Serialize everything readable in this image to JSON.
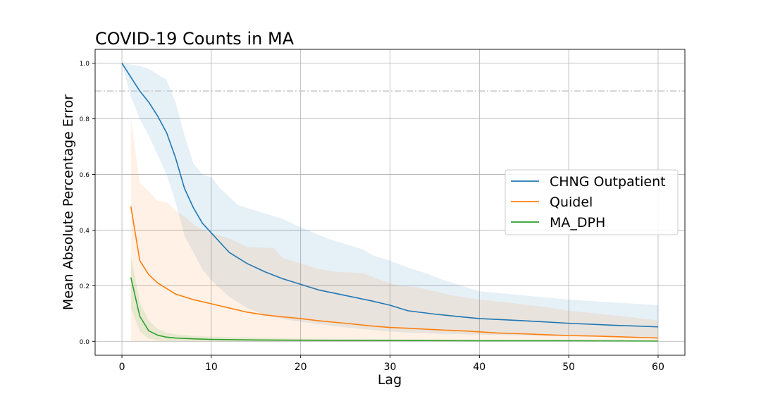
{
  "chart_data": {
    "type": "line",
    "title": "COVID-19 Counts in MA",
    "xlabel": "Lag",
    "ylabel": "Mean Absolute Percentage Error",
    "xlim": [
      -3,
      63
    ],
    "ylim": [
      -0.05,
      1.05
    ],
    "xticks": [
      0,
      10,
      20,
      30,
      40,
      50,
      60
    ],
    "yticks": [
      0.0,
      0.2,
      0.4,
      0.6,
      0.8,
      1.0
    ],
    "grid": true,
    "legend_position": "center-right",
    "reference_line": {
      "y": 0.9,
      "style": "dash-dot",
      "color": "#c8c8c8"
    },
    "series": [
      {
        "name": "CHNG Outpatient",
        "color": "#1f77b4",
        "band_color": "#1f77b4",
        "points": [
          [
            0,
            1.0
          ],
          [
            1,
            0.95
          ],
          [
            2,
            0.9
          ],
          [
            3,
            0.86
          ],
          [
            4,
            0.81
          ],
          [
            5,
            0.75
          ],
          [
            6,
            0.66
          ],
          [
            7,
            0.55
          ],
          [
            8,
            0.48
          ],
          [
            9,
            0.425
          ],
          [
            10,
            0.39
          ],
          [
            12,
            0.32
          ],
          [
            14,
            0.28
          ],
          [
            16,
            0.25
          ],
          [
            18,
            0.225
          ],
          [
            20,
            0.205
          ],
          [
            22,
            0.185
          ],
          [
            25,
            0.165
          ],
          [
            28,
            0.145
          ],
          [
            30,
            0.13
          ],
          [
            32,
            0.11
          ],
          [
            35,
            0.098
          ],
          [
            38,
            0.088
          ],
          [
            40,
            0.082
          ],
          [
            45,
            0.074
          ],
          [
            50,
            0.065
          ],
          [
            55,
            0.058
          ],
          [
            60,
            0.052
          ]
        ],
        "upper": [
          [
            0,
            1.0
          ],
          [
            2,
            0.99
          ],
          [
            3,
            0.98
          ],
          [
            5,
            0.94
          ],
          [
            6,
            0.86
          ],
          [
            7,
            0.74
          ],
          [
            8,
            0.64
          ],
          [
            9,
            0.6
          ],
          [
            10,
            0.59
          ],
          [
            11,
            0.55
          ],
          [
            12,
            0.52
          ],
          [
            13,
            0.49
          ],
          [
            15,
            0.47
          ],
          [
            18,
            0.44
          ],
          [
            20,
            0.41
          ],
          [
            23,
            0.37
          ],
          [
            25,
            0.35
          ],
          [
            27,
            0.33
          ],
          [
            28,
            0.31
          ],
          [
            30,
            0.29
          ],
          [
            32,
            0.265
          ],
          [
            34,
            0.245
          ],
          [
            36,
            0.22
          ],
          [
            38,
            0.2
          ],
          [
            40,
            0.18
          ],
          [
            45,
            0.165
          ],
          [
            50,
            0.15
          ],
          [
            55,
            0.14
          ],
          [
            60,
            0.13
          ]
        ],
        "lower": [
          [
            0,
            1.0
          ],
          [
            1,
            0.88
          ],
          [
            2,
            0.8
          ],
          [
            3,
            0.74
          ],
          [
            4,
            0.67
          ],
          [
            5,
            0.6
          ],
          [
            6,
            0.5
          ],
          [
            7,
            0.38
          ],
          [
            8,
            0.32
          ],
          [
            9,
            0.26
          ],
          [
            10,
            0.22
          ],
          [
            12,
            0.16
          ],
          [
            14,
            0.12
          ],
          [
            16,
            0.095
          ],
          [
            18,
            0.08
          ],
          [
            20,
            0.07
          ],
          [
            25,
            0.05
          ],
          [
            30,
            0.035
          ],
          [
            35,
            0.028
          ],
          [
            40,
            0.024
          ],
          [
            50,
            0.018
          ],
          [
            60,
            0.014
          ]
        ]
      },
      {
        "name": "Quidel",
        "color": "#ff7f0e",
        "band_color": "#ff7f0e",
        "points": [
          [
            1,
            0.485
          ],
          [
            2,
            0.29
          ],
          [
            3,
            0.24
          ],
          [
            4,
            0.21
          ],
          [
            5,
            0.19
          ],
          [
            6,
            0.17
          ],
          [
            8,
            0.15
          ],
          [
            10,
            0.135
          ],
          [
            12,
            0.12
          ],
          [
            14,
            0.105
          ],
          [
            16,
            0.095
          ],
          [
            18,
            0.088
          ],
          [
            20,
            0.082
          ],
          [
            22,
            0.074
          ],
          [
            25,
            0.065
          ],
          [
            28,
            0.055
          ],
          [
            30,
            0.05
          ],
          [
            32,
            0.047
          ],
          [
            35,
            0.042
          ],
          [
            38,
            0.038
          ],
          [
            40,
            0.034
          ],
          [
            42,
            0.03
          ],
          [
            45,
            0.027
          ],
          [
            48,
            0.023
          ],
          [
            50,
            0.021
          ],
          [
            53,
            0.019
          ],
          [
            55,
            0.017
          ],
          [
            58,
            0.014
          ],
          [
            60,
            0.012
          ]
        ],
        "upper": [
          [
            1,
            0.8
          ],
          [
            2,
            0.57
          ],
          [
            3,
            0.54
          ],
          [
            4,
            0.505
          ],
          [
            5,
            0.5
          ],
          [
            6,
            0.47
          ],
          [
            7,
            0.45
          ],
          [
            8,
            0.42
          ],
          [
            9,
            0.4
          ],
          [
            10,
            0.39
          ],
          [
            12,
            0.37
          ],
          [
            14,
            0.34
          ],
          [
            17,
            0.335
          ],
          [
            18,
            0.3
          ],
          [
            20,
            0.28
          ],
          [
            22,
            0.26
          ],
          [
            24,
            0.25
          ],
          [
            27,
            0.245
          ],
          [
            29,
            0.22
          ],
          [
            31,
            0.2
          ],
          [
            33,
            0.195
          ],
          [
            35,
            0.18
          ],
          [
            37,
            0.165
          ],
          [
            40,
            0.15
          ],
          [
            43,
            0.14
          ],
          [
            47,
            0.125
          ],
          [
            50,
            0.11
          ],
          [
            53,
            0.1
          ],
          [
            56,
            0.09
          ],
          [
            60,
            0.075
          ]
        ],
        "lower": [
          [
            1,
            0.0
          ],
          [
            60,
            0.0
          ]
        ]
      },
      {
        "name": "MA_DPH",
        "color": "#2ca02c",
        "band_color": "#2ca02c",
        "points": [
          [
            1,
            0.23
          ],
          [
            2,
            0.09
          ],
          [
            3,
            0.038
          ],
          [
            4,
            0.022
          ],
          [
            5,
            0.015
          ],
          [
            6,
            0.012
          ],
          [
            8,
            0.009
          ],
          [
            10,
            0.007
          ],
          [
            15,
            0.005
          ],
          [
            20,
            0.004
          ],
          [
            30,
            0.003
          ],
          [
            40,
            0.002
          ],
          [
            50,
            0.002
          ],
          [
            60,
            0.001
          ]
        ],
        "upper": [
          [
            1,
            0.31
          ],
          [
            2,
            0.14
          ],
          [
            3,
            0.075
          ],
          [
            4,
            0.045
          ],
          [
            5,
            0.032
          ],
          [
            6,
            0.025
          ],
          [
            8,
            0.02
          ],
          [
            10,
            0.017
          ],
          [
            15,
            0.013
          ],
          [
            20,
            0.01
          ],
          [
            30,
            0.008
          ],
          [
            40,
            0.006
          ],
          [
            50,
            0.005
          ],
          [
            60,
            0.004
          ]
        ],
        "lower": [
          [
            1,
            0.12
          ],
          [
            2,
            0.035
          ],
          [
            3,
            0.01
          ],
          [
            4,
            0.004
          ],
          [
            5,
            0.002
          ],
          [
            8,
            0.001
          ],
          [
            60,
            0.0
          ]
        ]
      }
    ]
  }
}
